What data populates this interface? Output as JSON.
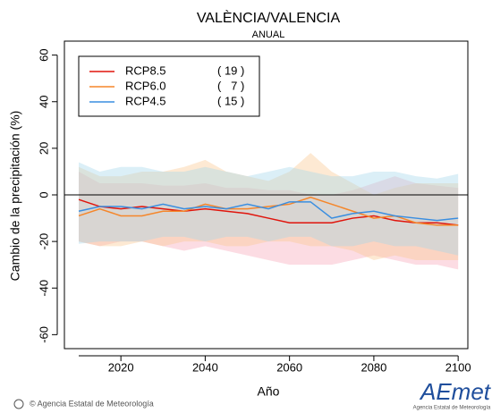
{
  "chart_data": {
    "type": "line",
    "title": "VALÈNCIA/VALENCIA",
    "subtitle": "ANUAL",
    "x_label": "Año",
    "y_label": "Cambio de la precipitación (%)",
    "x": [
      2010,
      2015,
      2020,
      2025,
      2030,
      2035,
      2040,
      2045,
      2050,
      2055,
      2060,
      2065,
      2070,
      2075,
      2080,
      2085,
      2090,
      2095,
      2100
    ],
    "series": [
      {
        "name": "RCP8.5",
        "count": "( 19 )",
        "color": "#e0140c",
        "band_color": "#f7a8b8",
        "values": [
          -2,
          -5,
          -6,
          -5,
          -6,
          -7,
          -6,
          -7,
          -8,
          -10,
          -12,
          -12,
          -12,
          -10,
          -9,
          -11,
          -12,
          -12,
          -13
        ],
        "upper": [
          10,
          5,
          5,
          5,
          4,
          4,
          5,
          3,
          3,
          2,
          2,
          0,
          0,
          2,
          5,
          8,
          5,
          4,
          3
        ],
        "lower": [
          -20,
          -22,
          -20,
          -20,
          -22,
          -24,
          -22,
          -24,
          -26,
          -28,
          -30,
          -30,
          -30,
          -28,
          -26,
          -28,
          -30,
          -30,
          -32
        ]
      },
      {
        "name": "RCP6.0",
        "count": "(   7 )",
        "color": "#f5862a",
        "band_color": "#fac890",
        "values": [
          -9,
          -6,
          -9,
          -9,
          -7,
          -7,
          -4,
          -6,
          -6,
          -5,
          -4,
          -1,
          -4,
          -7,
          -10,
          -9,
          -12,
          -13,
          -13
        ],
        "upper": [
          12,
          8,
          8,
          10,
          10,
          12,
          15,
          10,
          8,
          6,
          10,
          18,
          10,
          5,
          0,
          3,
          5,
          5,
          5
        ],
        "lower": [
          -20,
          -22,
          -22,
          -20,
          -22,
          -20,
          -20,
          -22,
          -22,
          -20,
          -20,
          -22,
          -22,
          -24,
          -28,
          -26,
          -28,
          -28,
          -28
        ]
      },
      {
        "name": "RCP4.5",
        "count": "( 15 )",
        "color": "#3a8ee0",
        "band_color": "#a6d8ea",
        "values": [
          -7,
          -5,
          -5,
          -6,
          -4,
          -6,
          -5,
          -6,
          -4,
          -6,
          -3,
          -3,
          -10,
          -8,
          -7,
          -9,
          -10,
          -11,
          -10
        ],
        "upper": [
          14,
          10,
          12,
          12,
          10,
          10,
          12,
          10,
          8,
          10,
          12,
          10,
          8,
          8,
          10,
          10,
          8,
          7,
          9
        ],
        "lower": [
          -21,
          -20,
          -20,
          -20,
          -18,
          -18,
          -20,
          -18,
          -18,
          -20,
          -18,
          -18,
          -22,
          -22,
          -20,
          -22,
          -22,
          -24,
          -26
        ]
      }
    ],
    "reference_line": 0,
    "xlim": [
      2006.6,
      2102.3
    ],
    "xticks": [
      2020,
      2040,
      2060,
      2080,
      2100
    ],
    "ylim": [
      -66,
      66
    ],
    "yticks": [
      -60,
      -40,
      -20,
      0,
      20,
      40,
      60
    ],
    "legend": "upper-left",
    "footer": "© Agencia Estatal de Meteorología",
    "logo": "AEmet",
    "logo_caption": "Agencia Estatal de Meteorología"
  }
}
